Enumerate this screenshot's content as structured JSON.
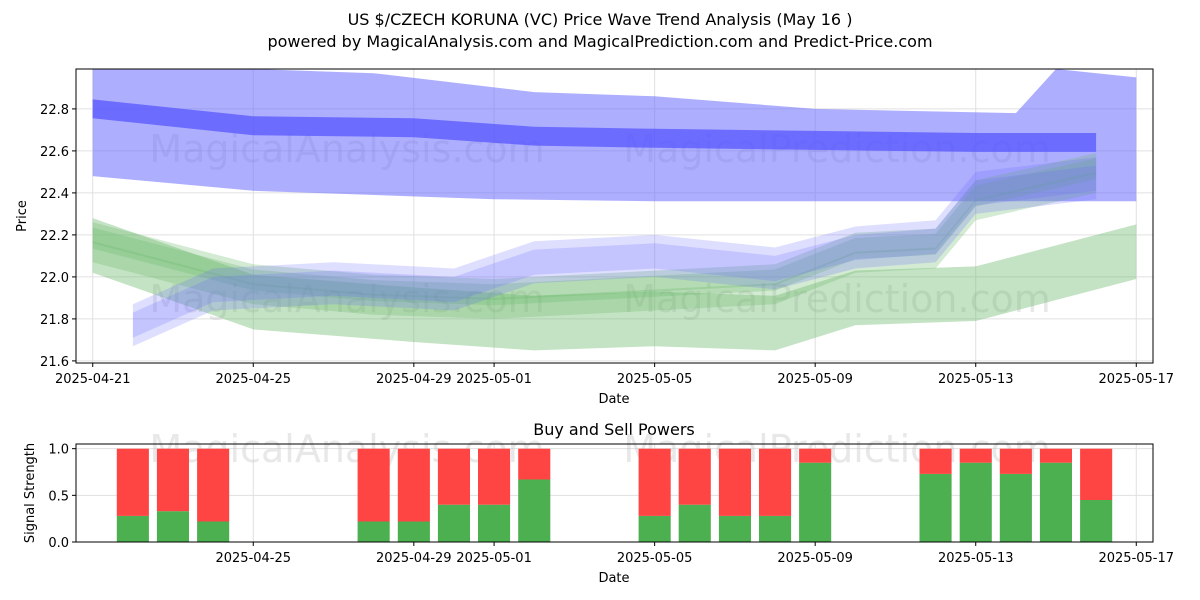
{
  "title_line1": "US $/CZECH KORUNA (VC) Price Wave Trend Analysis (May 16 )",
  "title_line2": "powered by MagicalAnalysis.com and MagicalPrediction.com and Predict-Price.com",
  "watermarks": [
    "MagicalAnalysis.com",
    "MagicalPrediction.com"
  ],
  "colors": {
    "blue": "#6b6bff",
    "green": "#6cb86c",
    "buy": "#4caf50",
    "sell": "#ff4444",
    "grid": "#e0e0e0"
  },
  "chart_data": [
    {
      "type": "area",
      "title": "",
      "xlabel": "Date",
      "ylabel": "Price",
      "x_ticks": [
        "2025-04-21",
        "2025-04-25",
        "2025-04-29",
        "2025-05-01",
        "2025-05-05",
        "2025-05-09",
        "2025-05-13",
        "2025-05-17"
      ],
      "y_ticks": [
        "21.6",
        "21.8",
        "22.0",
        "22.2",
        "22.4",
        "22.6",
        "22.8"
      ],
      "xlim": [
        "2025-04-21",
        "2025-05-17"
      ],
      "ylim": [
        21.59,
        22.99
      ],
      "grid": true,
      "series": [
        {
          "color": "blue",
          "points": [
            {
              "x": "2025-04-21",
              "y": 22.8
            },
            {
              "x": "2025-04-25",
              "y": 22.72
            },
            {
              "x": "2025-04-29",
              "y": 22.71
            },
            {
              "x": "2025-05-02",
              "y": 22.67
            },
            {
              "x": "2025-05-05",
              "y": 22.66
            },
            {
              "x": "2025-05-09",
              "y": 22.65
            },
            {
              "x": "2025-05-13",
              "y": 22.64
            },
            {
              "x": "2025-05-16",
              "y": 22.64
            }
          ],
          "band_inner": 0.045,
          "band_outer": 0.3,
          "outer_upper": [
            {
              "x": "2025-04-21",
              "y": 22.99
            },
            {
              "x": "2025-04-25",
              "y": 22.99
            },
            {
              "x": "2025-04-28",
              "y": 22.97
            },
            {
              "x": "2025-05-02",
              "y": 22.88
            },
            {
              "x": "2025-05-05",
              "y": 22.86
            },
            {
              "x": "2025-05-09",
              "y": 22.8
            },
            {
              "x": "2025-05-14",
              "y": 22.78
            },
            {
              "x": "2025-05-15",
              "y": 22.99
            },
            {
              "x": "2025-05-17",
              "y": 22.95
            }
          ],
          "outer_lower": [
            {
              "x": "2025-04-21",
              "y": 22.48
            },
            {
              "x": "2025-04-25",
              "y": 22.41
            },
            {
              "x": "2025-05-01",
              "y": 22.37
            },
            {
              "x": "2025-05-05",
              "y": 22.36
            },
            {
              "x": "2025-05-09",
              "y": 22.36
            },
            {
              "x": "2025-05-13",
              "y": 22.36
            },
            {
              "x": "2025-05-17",
              "y": 22.36
            }
          ]
        },
        {
          "color": "blue",
          "points": [
            {
              "x": "2025-04-22",
              "y": 21.75
            },
            {
              "x": "2025-04-24",
              "y": 21.92
            },
            {
              "x": "2025-04-27",
              "y": 21.95
            },
            {
              "x": "2025-04-30",
              "y": 21.92
            },
            {
              "x": "2025-05-02",
              "y": 22.05
            },
            {
              "x": "2025-05-05",
              "y": 22.08
            },
            {
              "x": "2025-05-08",
              "y": 22.02
            },
            {
              "x": "2025-05-10",
              "y": 22.12
            },
            {
              "x": "2025-05-12",
              "y": 22.15
            },
            {
              "x": "2025-05-13",
              "y": 22.38
            },
            {
              "x": "2025-05-16",
              "y": 22.45
            }
          ]
        },
        {
          "color": "green",
          "points": [
            {
              "x": "2025-04-21",
              "y": 22.15
            },
            {
              "x": "2025-04-23",
              "y": 22.05
            },
            {
              "x": "2025-04-25",
              "y": 21.95
            },
            {
              "x": "2025-04-28",
              "y": 21.9
            },
            {
              "x": "2025-05-01",
              "y": 21.88
            },
            {
              "x": "2025-05-05",
              "y": 21.92
            },
            {
              "x": "2025-05-08",
              "y": 21.95
            },
            {
              "x": "2025-05-10",
              "y": 22.1
            },
            {
              "x": "2025-05-12",
              "y": 22.12
            },
            {
              "x": "2025-05-13",
              "y": 22.35
            },
            {
              "x": "2025-05-16",
              "y": 22.48
            }
          ]
        },
        {
          "color": "green",
          "points": [
            {
              "x": "2025-04-21",
              "y": 22.15
            },
            {
              "x": "2025-04-25",
              "y": 21.88
            },
            {
              "x": "2025-04-29",
              "y": 21.82
            },
            {
              "x": "2025-05-02",
              "y": 21.78
            },
            {
              "x": "2025-05-05",
              "y": 21.8
            },
            {
              "x": "2025-05-08",
              "y": 21.78
            },
            {
              "x": "2025-05-10",
              "y": 21.9
            },
            {
              "x": "2025-05-13",
              "y": 21.92
            },
            {
              "x": "2025-05-17",
              "y": 22.12
            }
          ]
        }
      ]
    },
    {
      "type": "bar",
      "title": "Buy and Sell Powers",
      "xlabel": "Date",
      "ylabel": "Signal Strength",
      "x_ticks": [
        "2025-04-25",
        "2025-04-29",
        "2025-05-01",
        "2025-05-05",
        "2025-05-09",
        "2025-05-13",
        "2025-05-17"
      ],
      "y_ticks": [
        "0.0",
        "0.5",
        "1.0"
      ],
      "ylim": [
        0,
        1.05
      ],
      "categories": [
        "2025-04-22",
        "2025-04-23",
        "2025-04-24",
        "2025-04-28",
        "2025-04-29",
        "2025-04-30",
        "2025-05-01",
        "2025-05-02",
        "2025-05-05",
        "2025-05-06",
        "2025-05-07",
        "2025-05-08",
        "2025-05-09",
        "2025-05-12",
        "2025-05-13",
        "2025-05-14",
        "2025-05-15",
        "2025-05-16"
      ],
      "series": [
        {
          "name": "buy",
          "values": [
            0.28,
            0.33,
            0.22,
            0.22,
            0.22,
            0.4,
            0.4,
            0.67,
            0.28,
            0.4,
            0.28,
            0.28,
            0.85,
            0.73,
            0.85,
            0.73,
            0.85,
            0.45
          ]
        },
        {
          "name": "sell",
          "values": [
            0.72,
            0.67,
            0.78,
            0.78,
            0.78,
            0.6,
            0.6,
            0.33,
            0.72,
            0.6,
            0.72,
            0.72,
            0.15,
            0.27,
            0.15,
            0.27,
            0.15,
            0.55
          ]
        }
      ]
    }
  ]
}
